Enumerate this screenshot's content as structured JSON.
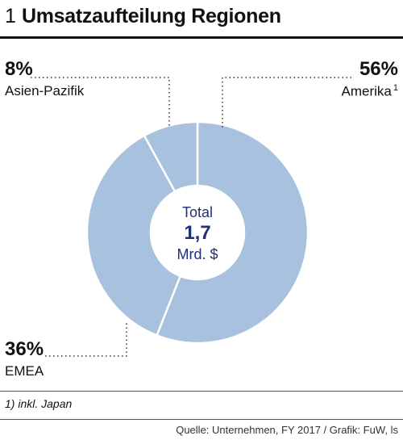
{
  "header": {
    "figure_number": "1",
    "title": "Umsatzaufteilung Regionen"
  },
  "chart_data": {
    "type": "pie",
    "donut": true,
    "slices": [
      {
        "label": "Amerika",
        "footnote_marker": "1",
        "value": 56,
        "value_label": "56%"
      },
      {
        "label": "EMEA",
        "value": 36,
        "value_label": "36%"
      },
      {
        "label": "Asien-Pazifik",
        "value": 8,
        "value_label": "8%"
      }
    ],
    "center": {
      "label": "Total",
      "value": "1,7",
      "unit": "Mrd. $"
    },
    "colors": {
      "slice": "#a7c1de",
      "separator": "#ffffff",
      "center_text": "#1f2f7a",
      "leader": "#333333"
    }
  },
  "footnote": "1) inkl. Japan",
  "source": "Quelle: Unternehmen, FY 2017 / Grafik: FuW, ls"
}
